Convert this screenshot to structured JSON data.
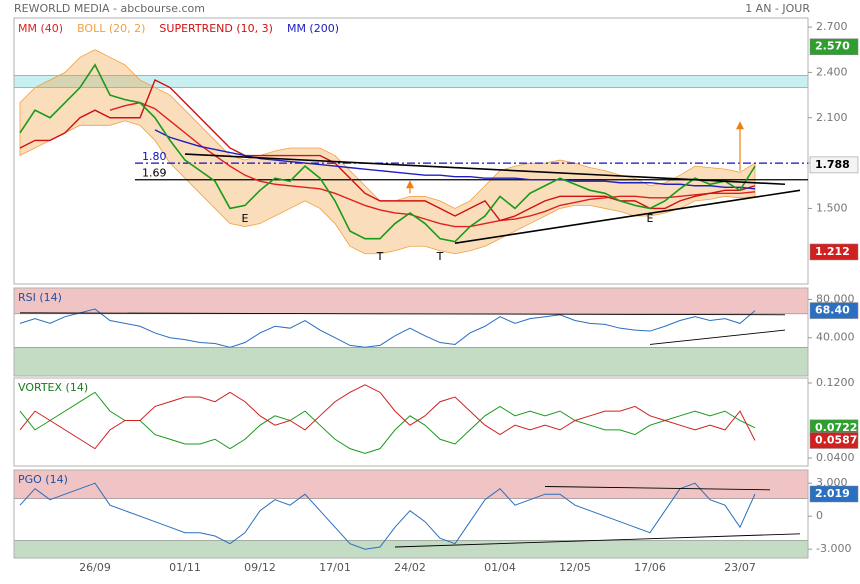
{
  "chart_data": [
    {
      "type": "line",
      "title": "REWORLD MEDIA - abcbourse.com",
      "subtitle": "1 AN - JOUR",
      "color": "#1a9a1a",
      "values": [
        2.0,
        2.15,
        2.1,
        2.2,
        2.3,
        2.45,
        2.25,
        2.22,
        2.2,
        2.1,
        1.95,
        1.82,
        1.75,
        1.68,
        1.5,
        1.52,
        1.62,
        1.7,
        1.68,
        1.78,
        1.7,
        1.55,
        1.35,
        1.3,
        1.3,
        1.4,
        1.47,
        1.4,
        1.3,
        1.28,
        1.38,
        1.45,
        1.58,
        1.5,
        1.6,
        1.65,
        1.7,
        1.66,
        1.62,
        1.6,
        1.55,
        1.52,
        1.5,
        1.55,
        1.63,
        1.7,
        1.66,
        1.68,
        1.62,
        1.78
      ],
      "series": [
        {
          "name": "MM (40)",
          "color": "#e02020",
          "values": [
            null,
            null,
            null,
            null,
            null,
            null,
            2.15,
            2.18,
            2.2,
            2.16,
            2.08,
            2.0,
            1.92,
            1.85,
            1.78,
            1.72,
            1.68,
            1.66,
            1.65,
            1.64,
            1.63,
            1.6,
            1.56,
            1.52,
            1.49,
            1.47,
            1.46,
            1.43,
            1.4,
            1.38,
            1.38,
            1.4,
            1.42,
            1.43,
            1.45,
            1.48,
            1.52,
            1.54,
            1.56,
            1.57,
            1.58,
            1.58,
            1.57,
            1.57,
            1.58,
            1.59,
            1.6,
            1.6,
            1.6,
            1.61
          ]
        },
        {
          "name": "BOLL (20, 2)",
          "color": "#f0a040",
          "upper": [
            2.2,
            2.3,
            2.35,
            2.4,
            2.5,
            2.55,
            2.5,
            2.45,
            2.35,
            2.3,
            2.25,
            2.15,
            2.05,
            1.95,
            1.85,
            1.82,
            1.85,
            1.88,
            1.9,
            1.9,
            1.9,
            1.85,
            1.75,
            1.65,
            1.55,
            1.55,
            1.58,
            1.58,
            1.55,
            1.5,
            1.55,
            1.65,
            1.75,
            1.78,
            1.8,
            1.8,
            1.82,
            1.8,
            1.77,
            1.75,
            1.72,
            1.7,
            1.65,
            1.67,
            1.72,
            1.78,
            1.77,
            1.76,
            1.74,
            1.8
          ],
          "lower": [
            1.85,
            1.9,
            1.95,
            2.0,
            2.05,
            2.05,
            2.05,
            2.08,
            2.05,
            1.95,
            1.8,
            1.7,
            1.6,
            1.5,
            1.4,
            1.38,
            1.4,
            1.45,
            1.5,
            1.55,
            1.5,
            1.4,
            1.25,
            1.2,
            1.2,
            1.22,
            1.25,
            1.25,
            1.22,
            1.2,
            1.22,
            1.25,
            1.3,
            1.35,
            1.4,
            1.45,
            1.5,
            1.52,
            1.52,
            1.5,
            1.48,
            1.45,
            1.45,
            1.47,
            1.5,
            1.55,
            1.56,
            1.58,
            1.57,
            1.58
          ]
        },
        {
          "name": "SUPERTREND (10, 3)",
          "color": "#d01010",
          "values": [
            1.9,
            1.95,
            1.95,
            2.0,
            2.1,
            2.15,
            2.1,
            2.1,
            2.1,
            2.35,
            2.3,
            2.2,
            2.1,
            2.0,
            1.9,
            1.85,
            1.85,
            1.85,
            1.85,
            1.85,
            1.85,
            1.8,
            1.7,
            1.6,
            1.55,
            1.55,
            1.55,
            1.55,
            1.5,
            1.45,
            1.5,
            1.55,
            1.42,
            1.45,
            1.5,
            1.55,
            1.58,
            1.58,
            1.58,
            1.58,
            1.55,
            1.55,
            1.5,
            1.5,
            1.55,
            1.58,
            1.6,
            1.62,
            1.62,
            1.65
          ]
        },
        {
          "name": "MM (200)",
          "color": "#2020c0",
          "values": [
            null,
            null,
            null,
            null,
            null,
            null,
            null,
            null,
            null,
            2.02,
            1.97,
            1.94,
            1.91,
            1.89,
            1.87,
            1.85,
            1.83,
            1.82,
            1.81,
            1.8,
            1.79,
            1.78,
            1.77,
            1.76,
            1.75,
            1.74,
            1.73,
            1.72,
            1.72,
            1.71,
            1.71,
            1.7,
            1.7,
            1.7,
            1.69,
            1.69,
            1.69,
            1.68,
            1.68,
            1.68,
            1.67,
            1.67,
            1.67,
            1.66,
            1.66,
            1.65,
            1.65,
            1.64,
            1.64,
            1.63
          ]
        }
      ],
      "ylim": [
        1.0,
        2.76
      ],
      "yticks": [
        {
          "value": 2.7,
          "label": "2.700"
        },
        {
          "value": 2.4,
          "label": "2.400"
        },
        {
          "value": 2.1,
          "label": "2.100"
        },
        {
          "value": 1.8,
          "label": "1.800"
        },
        {
          "value": 1.5,
          "label": "1.500"
        }
      ],
      "zones": [
        {
          "from": 2.3,
          "to": 2.38,
          "color": "#c8f0f0"
        }
      ],
      "hlines": [
        {
          "value": 1.8,
          "label": "1.80",
          "color": "#1010c0",
          "dash": "8 3 2 3"
        },
        {
          "value": 1.69,
          "label": "1.69",
          "color": "#000000"
        }
      ],
      "trendlines": [
        [
          [
            11,
            1.86
          ],
          [
            51,
            1.66
          ]
        ],
        [
          [
            29,
            1.27
          ],
          [
            52,
            1.62
          ]
        ]
      ],
      "arrows": [
        {
          "x": 26,
          "from": 1.6,
          "to": 1.68
        },
        {
          "x": 48,
          "from": 1.75,
          "to": 2.07
        }
      ],
      "annotations": [
        {
          "label": "E",
          "x": 15,
          "y": 1.43
        },
        {
          "label": "T",
          "x": 24,
          "y": 1.18
        },
        {
          "label": "T",
          "x": 28,
          "y": 1.18
        },
        {
          "label": "E",
          "x": 42,
          "y": 1.43
        }
      ],
      "price_labels": [
        {
          "value": 2.57,
          "label": "2.570",
          "color": "#2e9e2e",
          "text_color": "#ffffff"
        },
        {
          "value": 1.788,
          "label": "1.788",
          "color": "#f4f4f4",
          "text_color": "#000000"
        },
        {
          "value": 1.212,
          "label": "1.212",
          "color": "#d02020",
          "text_color": "#ffffff"
        }
      ]
    },
    {
      "type": "line",
      "title": "RSI (14)",
      "series": [
        {
          "name": "RSI (14)",
          "color": "#2a6fc0",
          "values": [
            55,
            60,
            55,
            62,
            66,
            70,
            58,
            55,
            52,
            45,
            40,
            38,
            35,
            34,
            30,
            35,
            45,
            52,
            50,
            58,
            48,
            40,
            32,
            30,
            32,
            42,
            50,
            42,
            35,
            33,
            45,
            52,
            62,
            55,
            60,
            62,
            64,
            58,
            55,
            54,
            50,
            48,
            47,
            52,
            58,
            62,
            58,
            60,
            55,
            68.4
          ]
        }
      ],
      "ylim": [
        0,
        92
      ],
      "yticks": [
        {
          "value": 80,
          "label": "80.000"
        },
        {
          "value": 40,
          "label": "40.000"
        }
      ],
      "zones": [
        {
          "from": 65,
          "to": 92,
          "color": "#f0c4c4"
        },
        {
          "from": 0,
          "to": 30,
          "color": "#c4dcc4"
        }
      ],
      "trendlines": [
        [
          [
            0,
            66
          ],
          [
            51,
            64
          ]
        ],
        [
          [
            42,
            33
          ],
          [
            51,
            48
          ]
        ]
      ],
      "price_labels": [
        {
          "value": 68.4,
          "label": "68.40",
          "color": "#2a6fc0",
          "text_color": "#ffffff"
        }
      ]
    },
    {
      "type": "line",
      "title": "VORTEX (14)",
      "series": [
        {
          "name": "VI+",
          "color": "#1a9a1a",
          "values": [
            0.09,
            0.07,
            0.08,
            0.09,
            0.1,
            0.11,
            0.09,
            0.08,
            0.08,
            0.065,
            0.06,
            0.055,
            0.055,
            0.06,
            0.05,
            0.06,
            0.075,
            0.085,
            0.08,
            0.09,
            0.075,
            0.06,
            0.05,
            0.045,
            0.05,
            0.07,
            0.085,
            0.075,
            0.06,
            0.055,
            0.07,
            0.085,
            0.095,
            0.085,
            0.09,
            0.085,
            0.09,
            0.08,
            0.075,
            0.07,
            0.07,
            0.065,
            0.075,
            0.08,
            0.085,
            0.09,
            0.085,
            0.09,
            0.08,
            0.0722
          ]
        },
        {
          "name": "VI-",
          "color": "#d02020",
          "values": [
            0.07,
            0.09,
            0.08,
            0.07,
            0.06,
            0.05,
            0.07,
            0.08,
            0.08,
            0.095,
            0.1,
            0.105,
            0.105,
            0.1,
            0.11,
            0.1,
            0.085,
            0.075,
            0.08,
            0.07,
            0.085,
            0.1,
            0.11,
            0.118,
            0.11,
            0.09,
            0.075,
            0.085,
            0.1,
            0.105,
            0.09,
            0.075,
            0.065,
            0.075,
            0.07,
            0.075,
            0.07,
            0.08,
            0.085,
            0.09,
            0.09,
            0.095,
            0.085,
            0.08,
            0.075,
            0.07,
            0.075,
            0.07,
            0.09,
            0.0587
          ]
        }
      ],
      "ylim": [
        0.0315,
        0.1253
      ],
      "yticks": [
        {
          "value": 0.12,
          "label": "0.1200"
        },
        {
          "value": 0.04,
          "label": "0.0400"
        }
      ],
      "price_labels": [
        {
          "value": 0.0722,
          "label": "0.0722",
          "color": "#2e9e2e",
          "text_color": "#ffffff"
        },
        {
          "value": 0.0587,
          "label": "0.0587",
          "color": "#d02020",
          "text_color": "#ffffff"
        }
      ]
    },
    {
      "type": "line",
      "title": "PGO (14)",
      "series": [
        {
          "name": "PGO (14)",
          "color": "#2a6fc0",
          "values": [
            1,
            2.5,
            1.5,
            2,
            2.5,
            3,
            1,
            0.5,
            0,
            -0.5,
            -1,
            -1.5,
            -1.5,
            -1.8,
            -2.5,
            -1.5,
            0.5,
            1.5,
            1,
            2,
            0.5,
            -1,
            -2.5,
            -3,
            -2.8,
            -1,
            0.5,
            -0.5,
            -2,
            -2.5,
            -0.5,
            1.5,
            2.5,
            1,
            1.5,
            2,
            2,
            1,
            0.5,
            0,
            -0.5,
            -1,
            -1.5,
            0.5,
            2.5,
            3,
            1.5,
            1,
            -1,
            2.019
          ]
        }
      ],
      "ylim": [
        -3.8,
        4.2
      ],
      "yticks": [
        {
          "value": 3,
          "label": "3.000"
        },
        0,
        {
          "value": -3,
          "label": "-3.000"
        }
      ],
      "zones": [
        {
          "from": 1.6,
          "to": 4.2,
          "color": "#f0c4c4"
        },
        {
          "from": -3.8,
          "to": -2.2,
          "color": "#c4dcc4"
        }
      ],
      "trendlines": [
        [
          [
            25,
            -2.8
          ],
          [
            52,
            -1.6
          ]
        ],
        [
          [
            35,
            2.7
          ],
          [
            50,
            2.4
          ]
        ]
      ],
      "price_labels": [
        {
          "value": 2.019,
          "label": "2.019",
          "color": "#2a6fc0",
          "text_color": "#ffffff"
        }
      ],
      "categories": [
        null,
        null,
        null,
        null,
        null,
        "26/09",
        null,
        null,
        null,
        null,
        null,
        "01/11",
        null,
        null,
        null,
        null,
        "09/12",
        null,
        null,
        null,
        null,
        "17/01",
        null,
        null,
        null,
        null,
        "24/02",
        null,
        null,
        null,
        null,
        null,
        "01/04",
        null,
        null,
        null,
        null,
        "12/05",
        null,
        null,
        null,
        null,
        "17/06",
        null,
        null,
        null,
        null,
        null,
        "23/07",
        null
      ]
    }
  ]
}
